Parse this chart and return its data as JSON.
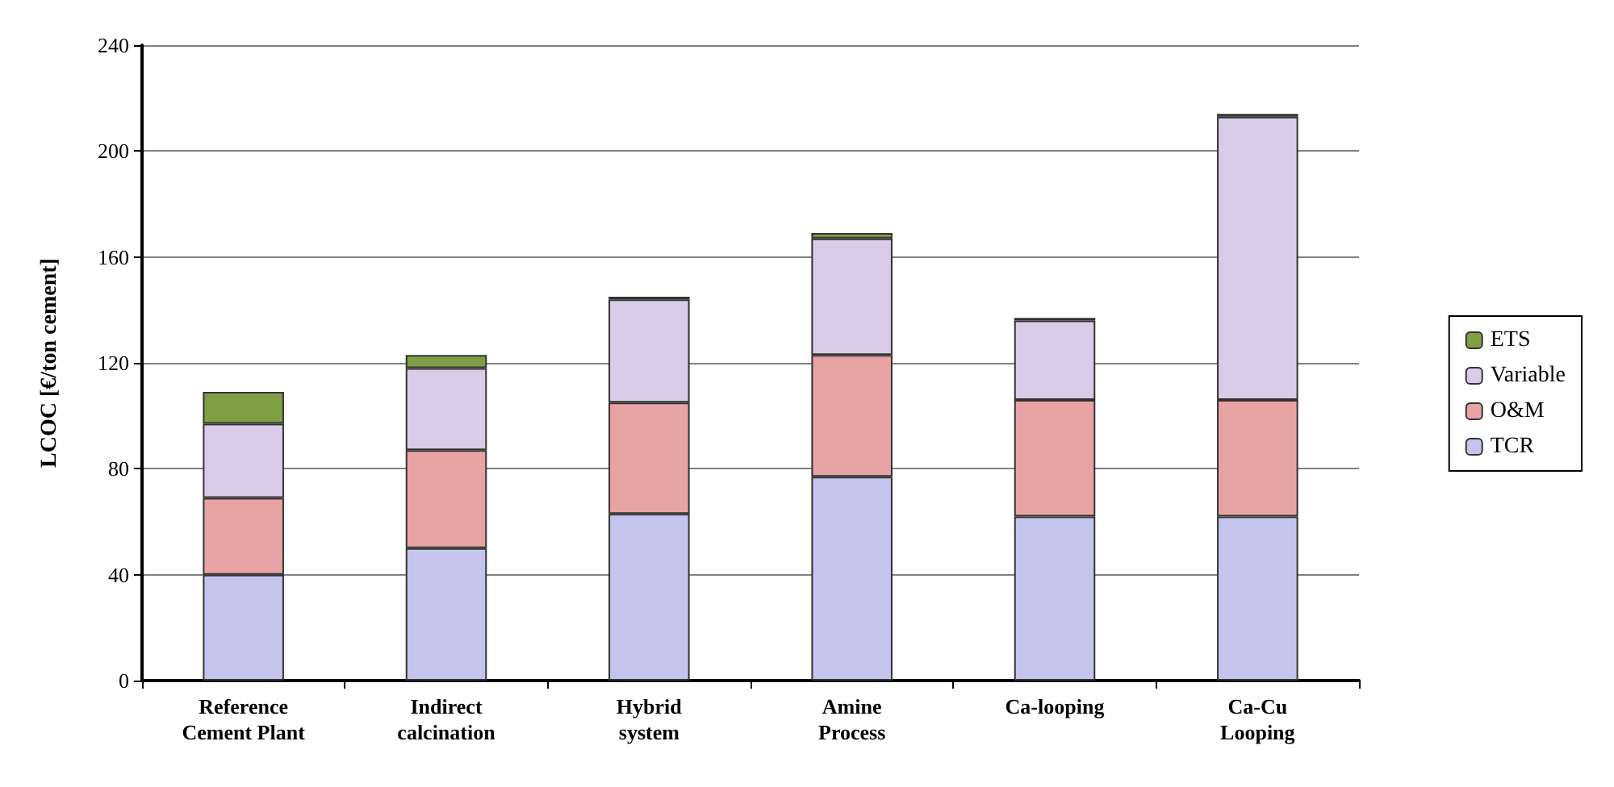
{
  "chart_data": {
    "type": "bar",
    "stacked": true,
    "ylabel": "LCOC [€/ton cement]",
    "categories": [
      "Reference\nCement Plant",
      "Indirect\ncalcination",
      "Hybrid\nsystem",
      "Amine\nProcess",
      "Ca-looping",
      "Ca-Cu\nLooping"
    ],
    "series": [
      {
        "name": "TCR",
        "color": "#c4c4ec",
        "values": [
          40,
          50,
          63,
          77,
          62,
          62
        ]
      },
      {
        "name": "O&M",
        "color": "#e8a4a4",
        "values": [
          29,
          37,
          42,
          46,
          44,
          44
        ]
      },
      {
        "name": "Variable",
        "color": "#d8cce8",
        "values": [
          28,
          31,
          39,
          44,
          30,
          107
        ]
      },
      {
        "name": "ETS",
        "color": "#7f9f45",
        "values": [
          12,
          5,
          1,
          2,
          1,
          1
        ]
      }
    ],
    "ylim": [
      0,
      240
    ],
    "yticks": [
      0,
      40,
      80,
      120,
      160,
      200,
      240
    ],
    "grid": "y",
    "legend": "right"
  }
}
